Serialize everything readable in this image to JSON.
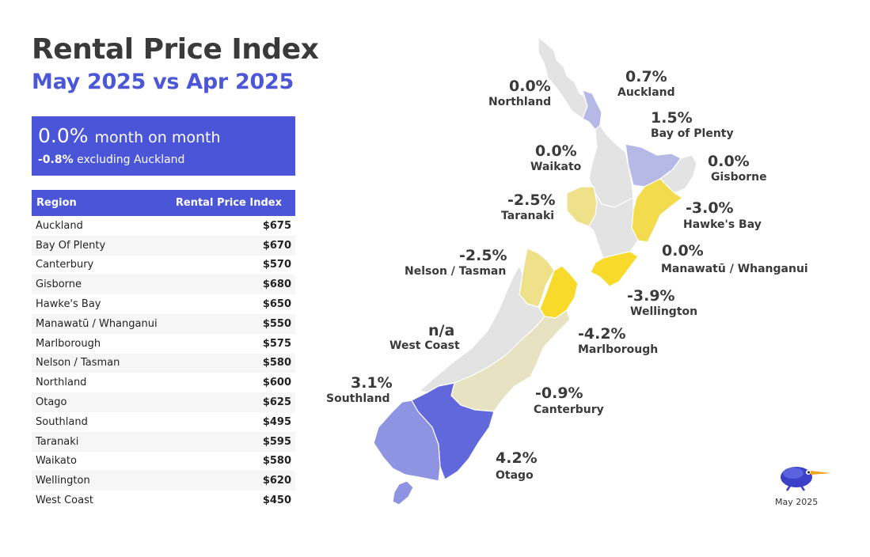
{
  "title": "Rental Price Index",
  "subtitle": "May 2025 vs Apr 2025",
  "summary": {
    "headline_value": "0.0%",
    "headline_suffix": "month on month",
    "sub_value": "-0.8%",
    "sub_suffix": "excluding Auckland"
  },
  "table": {
    "headers": [
      "Region",
      "Rental Price Index"
    ],
    "rows": [
      {
        "region": "Auckland",
        "value": "$675"
      },
      {
        "region": "Bay Of Plenty",
        "value": "$670"
      },
      {
        "region": "Canterbury",
        "value": "$570"
      },
      {
        "region": "Gisborne",
        "value": "$680"
      },
      {
        "region": "Hawke's Bay",
        "value": "$650"
      },
      {
        "region": "Manawatū / Whanganui",
        "value": "$550"
      },
      {
        "region": "Marlborough",
        "value": "$575"
      },
      {
        "region": "Nelson / Tasman",
        "value": "$580"
      },
      {
        "region": "Northland",
        "value": "$600"
      },
      {
        "region": "Otago",
        "value": "$625"
      },
      {
        "region": "Southland",
        "value": "$495"
      },
      {
        "region": "Taranaki",
        "value": "$595"
      },
      {
        "region": "Waikato",
        "value": "$580"
      },
      {
        "region": "Wellington",
        "value": "$620"
      },
      {
        "region": "West Coast",
        "value": "$450"
      }
    ]
  },
  "map": {
    "colors": {
      "neutral": "#e3e3e3",
      "light_blue": "#b6b9e6",
      "mid_blue": "#8f94e2",
      "strong_blue": "#6068dc",
      "beige": "#e6e2c2",
      "light_yellow": "#efe08a",
      "yellow": "#f2dc4e",
      "strong_yellow": "#f7da2a"
    },
    "regions": {
      "northland": {
        "pct": "0.0%",
        "name": "Northland"
      },
      "auckland": {
        "pct": "0.7%",
        "name": "Auckland"
      },
      "bay_of_plenty": {
        "pct": "1.5%",
        "name": "Bay of Plenty"
      },
      "waikato": {
        "pct": "0.0%",
        "name": "Waikato"
      },
      "gisborne": {
        "pct": "0.0%",
        "name": "Gisborne"
      },
      "taranaki": {
        "pct": "-2.5%",
        "name": "Taranaki"
      },
      "hawkes_bay": {
        "pct": "-3.0%",
        "name": "Hawke's Bay"
      },
      "manawatu": {
        "pct": "0.0%",
        "name": "Manawatū / Whanganui"
      },
      "nelson": {
        "pct": "-2.5%",
        "name": "Nelson / Tasman"
      },
      "wellington": {
        "pct": "-3.9%",
        "name": "Wellington"
      },
      "west_coast": {
        "pct": "n/a",
        "name": "West Coast"
      },
      "marlborough": {
        "pct": "-4.2%",
        "name": "Marlborough"
      },
      "southland": {
        "pct": "3.1%",
        "name": "Southland"
      },
      "canterbury": {
        "pct": "-0.9%",
        "name": "Canterbury"
      },
      "otago": {
        "pct": "4.2%",
        "name": "Otago"
      }
    }
  },
  "footer": {
    "date": "May 2025",
    "logo_icon": "kiwi-bird-icon"
  }
}
